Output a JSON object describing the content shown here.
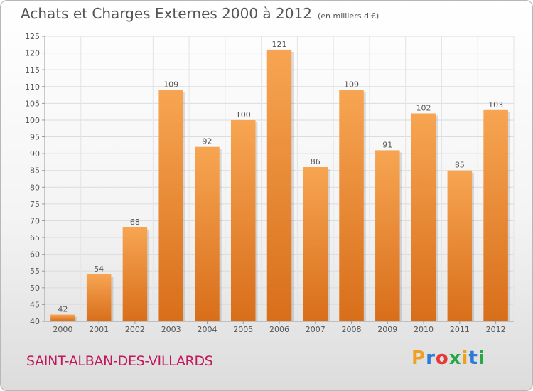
{
  "header": {
    "title": "Achats et Charges Externes 2000 à 2012",
    "unit": "(en milliers d'€)"
  },
  "footer": {
    "commune": "SAINT-ALBAN-DES-VILLARDS",
    "logo": "Proxiti",
    "logo_colors": [
      "#f0a020",
      "#2e7bd6",
      "#e53935",
      "#27a745",
      "#f0a020",
      "#2e7bd6",
      "#27a745"
    ]
  },
  "chart_data": {
    "type": "bar",
    "title": "Achats et Charges Externes 2000 à 2012",
    "subtitle": "(en milliers d'€)",
    "categories": [
      "2000",
      "2001",
      "2002",
      "2003",
      "2004",
      "2005",
      "2006",
      "2007",
      "2008",
      "2009",
      "2010",
      "2011",
      "2012"
    ],
    "values": [
      42,
      54,
      68,
      109,
      92,
      100,
      121,
      86,
      109,
      91,
      102,
      85,
      103
    ],
    "ylim": [
      40,
      125
    ],
    "yticks": [
      40,
      45,
      50,
      55,
      60,
      65,
      70,
      75,
      80,
      85,
      90,
      95,
      100,
      105,
      110,
      115,
      120,
      125
    ],
    "grid": true,
    "bar_color_top": "#f7a552",
    "bar_color_bottom": "#d86e1a",
    "legend": "none"
  }
}
